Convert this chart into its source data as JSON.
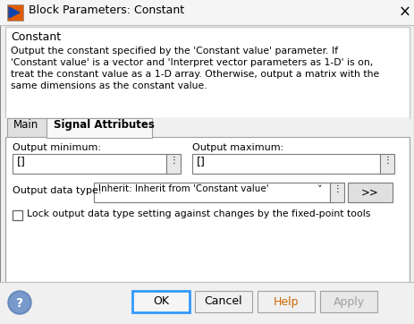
{
  "title": "Block Parameters: Constant",
  "section_title": "Constant",
  "desc_line1": "Output the constant specified by the 'Constant value' parameter. If",
  "desc_line2": "'Constant value' is a vector and 'Interpret vector parameters as 1-D' is on,",
  "desc_line3": "treat the constant value as a 1-D array. Otherwise, output a matrix with the",
  "desc_line4": "same dimensions as the constant value.",
  "tab_main": "Main",
  "tab_signal": "Signal Attributes",
  "label_out_min": "Output minimum:",
  "label_out_max": "Output maximum:",
  "field_min_val": "[]",
  "field_max_val": "[]",
  "label_data_type": "Output data type:",
  "dropdown_val": "Inherit: Inherit from 'Constant value'",
  "btn_arrow": ">>",
  "checkbox_label": "Lock output data type setting against changes by the fixed-point tools",
  "btn_ok": "OK",
  "btn_cancel": "Cancel",
  "btn_help": "Help",
  "btn_apply": "Apply",
  "bg_color": "#f0f0f0",
  "white": "#ffffff",
  "border_dark": "#888888",
  "border_mid": "#a0a0a0",
  "border_light": "#c8c8c8",
  "btn_gray": "#d8d8d8",
  "ok_border_color": "#3399ff",
  "apply_text_color": "#a0a0a0",
  "help_text_color": "#cc6600",
  "icon_orange": "#e05c00",
  "icon_blue": "#1144aa",
  "help_circle_color": "#6688bb"
}
